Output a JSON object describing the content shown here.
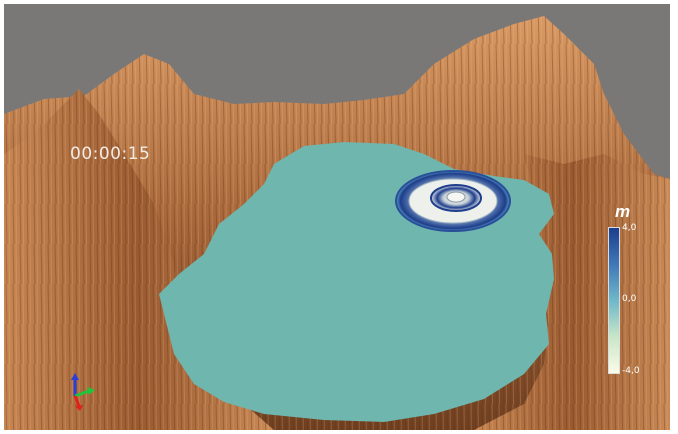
{
  "timestamp": "00:00:15",
  "legend": {
    "unit": "m",
    "max_label": "4,0",
    "mid_label": "0,0",
    "min_label": "-4,0",
    "colors": {
      "top": "#1c3f8c",
      "mid": "#6fb8c9",
      "bottom": "#fbfbe8"
    }
  },
  "scene": {
    "background": "#7a7877",
    "terrain_color": "#b87847",
    "water_color": "#6eb6ae",
    "axes_colors": {
      "x": "#e0221a",
      "y": "#22c33a",
      "z": "#2a3fd8"
    }
  }
}
